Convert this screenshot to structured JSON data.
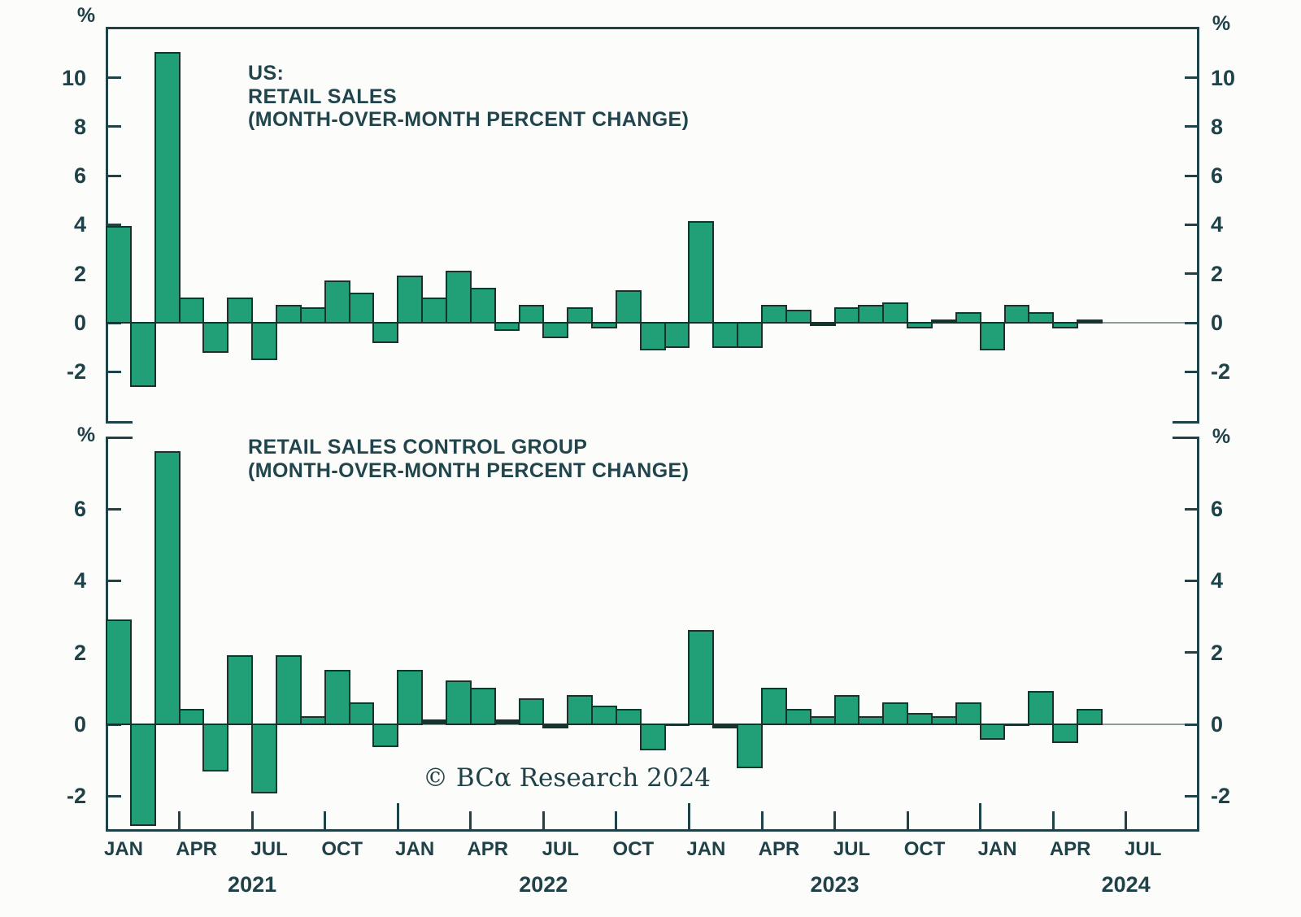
{
  "branding": {
    "copyright": "© BCα Research 2024"
  },
  "colors": {
    "background": "#fcfcfa",
    "bar_fill": "#21a078",
    "bar_border": "#17332e",
    "axis": "#1f4249",
    "zero_line": "#8d9c9a",
    "text": "#1f4249"
  },
  "x_axis": {
    "month_tick_labels": [
      "JAN",
      "APR",
      "JUL",
      "OCT",
      "JAN",
      "APR",
      "JUL",
      "OCT",
      "JAN",
      "APR",
      "JUL",
      "OCT",
      "JAN",
      "APR",
      "JUL"
    ],
    "year_labels": [
      "2021",
      "2022",
      "2023",
      "2024"
    ]
  },
  "chart_data": [
    {
      "type": "bar",
      "panel": "top",
      "title_lines": [
        "US:",
        "RETAIL SALES",
        "(MONTH-OVER-MONTH PERCENT CHANGE)"
      ],
      "unit": "%",
      "start_month": "2021-01",
      "end_month": "2024-05",
      "x_range_shown": [
        "JAN 2021",
        "JUL 2024"
      ],
      "yticks": [
        10,
        8,
        6,
        4,
        2,
        0,
        -2
      ],
      "ylim": [
        -4.0,
        12.1
      ],
      "legend": "none",
      "grid": "zero-line only",
      "values_mom_pct": [
        3.9,
        -2.6,
        11.0,
        1.0,
        -1.2,
        1.0,
        -1.5,
        0.7,
        0.6,
        1.7,
        1.2,
        -0.8,
        1.9,
        1.0,
        2.1,
        1.4,
        -0.3,
        0.7,
        -0.6,
        0.6,
        -0.2,
        1.3,
        -1.1,
        -1.0,
        4.1,
        -1.0,
        -1.0,
        0.7,
        0.5,
        -0.1,
        0.6,
        0.7,
        0.8,
        -0.2,
        0.1,
        0.4,
        -1.1,
        0.7,
        0.4,
        -0.2,
        0.1
      ]
    },
    {
      "type": "bar",
      "panel": "bottom",
      "title_lines": [
        "RETAIL SALES CONTROL GROUP",
        "(MONTH-OVER-MONTH PERCENT CHANGE)"
      ],
      "unit": "%",
      "start_month": "2021-01",
      "end_month": "2024-05",
      "x_range_shown": [
        "JAN 2021",
        "JUL 2024"
      ],
      "yticks": [
        6,
        4,
        2,
        0,
        -2
      ],
      "ylim": [
        -2.9,
        8.0
      ],
      "legend": "none",
      "grid": "zero-line only",
      "values_mom_pct": [
        2.9,
        -2.8,
        7.6,
        0.4,
        -1.3,
        1.9,
        -1.9,
        1.9,
        0.2,
        1.5,
        0.6,
        -0.6,
        1.5,
        0.1,
        1.2,
        1.0,
        0.1,
        0.7,
        -0.1,
        0.8,
        0.5,
        0.4,
        -0.7,
        0.0,
        2.6,
        -0.1,
        -1.2,
        1.0,
        0.4,
        0.2,
        0.8,
        0.2,
        0.6,
        0.3,
        0.2,
        0.6,
        -0.4,
        0.0,
        0.9,
        -0.5,
        0.4
      ]
    }
  ]
}
